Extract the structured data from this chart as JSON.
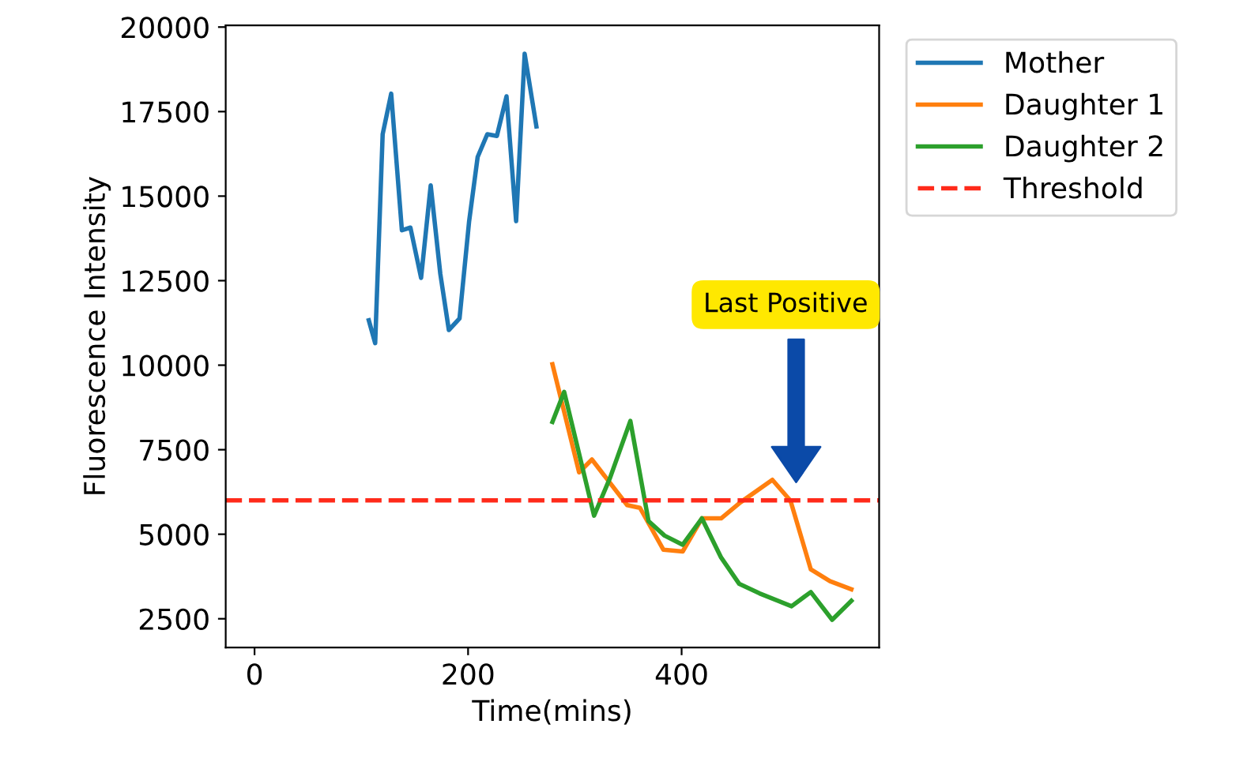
{
  "chart_data": {
    "type": "line",
    "xlabel": "Time(mins)",
    "ylabel": "Fluorescence Intensity",
    "xlim": [
      -27,
      585
    ],
    "xticks": [
      0,
      200,
      400
    ],
    "ylim": [
      1650,
      20050
    ],
    "yticks": [
      2500,
      5000,
      7500,
      10000,
      12500,
      15000,
      17500,
      20000
    ],
    "grid": false,
    "legend": "top right",
    "line_style": "solid",
    "marker": "none",
    "series": [
      {
        "name": "Mother",
        "color": "#1f77b4",
        "x": [
          107,
          113,
          120,
          128,
          138,
          146,
          156,
          165,
          174,
          182,
          192,
          201,
          209,
          218,
          227,
          236,
          245,
          253,
          264
        ],
        "values": [
          11330,
          10650,
          16830,
          18030,
          13990,
          14070,
          12580,
          15320,
          12700,
          11040,
          11380,
          14260,
          16160,
          16830,
          16780,
          17950,
          14260,
          19210,
          17060
        ]
      },
      {
        "name": "Daughter 1",
        "color": "#ff7f0e",
        "x": [
          279,
          304,
          316,
          349,
          361,
          383,
          401,
          419,
          437,
          455,
          485,
          502,
          521,
          539,
          559
        ],
        "values": [
          10030,
          6830,
          7210,
          5860,
          5780,
          4540,
          4490,
          5470,
          5470,
          5940,
          6610,
          5990,
          3960,
          3610,
          3370
        ]
      },
      {
        "name": "Daughter 2",
        "color": "#2ca02c",
        "x": [
          279,
          290,
          318,
          333,
          352,
          369,
          384,
          401,
          419,
          437,
          454,
          473,
          503,
          521,
          541,
          559
        ],
        "values": [
          8320,
          9210,
          5550,
          6670,
          8350,
          5390,
          4960,
          4690,
          5470,
          4310,
          3530,
          3250,
          2870,
          3290,
          2470,
          3030
        ]
      }
    ],
    "ref_lines": [
      {
        "axis": "y",
        "value": 6000,
        "label": "Threshold",
        "color": "#ff2a1a",
        "line_style": "dashed"
      }
    ],
    "annotations": [
      "Last Positive"
    ]
  }
}
